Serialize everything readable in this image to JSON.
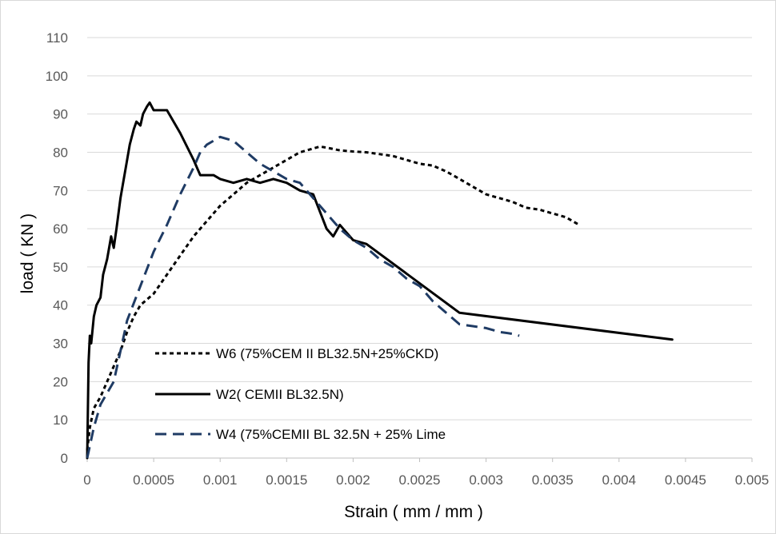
{
  "chart_data": {
    "type": "line",
    "title": "",
    "xlabel": "Strain (  mm / mm )",
    "ylabel": "load ( KN )",
    "xlim": [
      0,
      0.005
    ],
    "ylim": [
      0,
      110
    ],
    "xticks": [
      "0",
      "0.0005",
      "0.001",
      "0.0015",
      "0.002",
      "0.0025",
      "0.003",
      "0.0035",
      "0.004",
      "0.0045",
      "0.005"
    ],
    "yticks": [
      "0",
      "10",
      "20",
      "30",
      "40",
      "50",
      "60",
      "70",
      "80",
      "90",
      "100",
      "110"
    ],
    "grid": true,
    "legend_position": "lower-left (inside plot)",
    "series": [
      {
        "name": "W6 (75%CEM II BL32.5N+25%CKD)",
        "color": "#000000",
        "dash": "dotted",
        "x": [
          0,
          2e-05,
          5e-05,
          0.0001,
          0.00015,
          0.0002,
          0.00025,
          0.0003,
          0.00035,
          0.0004,
          0.0005,
          0.0006,
          0.0007,
          0.0008,
          0.0009,
          0.001,
          0.0011,
          0.0012,
          0.0013,
          0.0014,
          0.0015,
          0.0016,
          0.0017,
          0.00175,
          0.0018,
          0.0019,
          0.002,
          0.0021,
          0.0022,
          0.0023,
          0.0024,
          0.0025,
          0.0026,
          0.0027,
          0.0028,
          0.0029,
          0.003,
          0.0031,
          0.0032,
          0.0033,
          0.0034,
          0.0035,
          0.0036,
          0.0037
        ],
        "y": [
          2,
          8,
          13,
          16,
          20,
          24,
          28,
          33,
          37,
          40,
          43,
          48,
          53,
          58,
          62,
          66,
          69,
          72,
          74,
          76,
          78,
          80,
          81,
          81.5,
          81.2,
          80.5,
          80.2,
          80,
          79.5,
          79,
          78,
          77,
          76.5,
          75,
          73,
          71,
          69,
          68,
          67,
          65.5,
          65,
          64,
          63,
          61
        ]
      },
      {
        "name": "W2( CEMII BL32.5N)",
        "color": "#000000",
        "dash": "solid",
        "x": [
          0,
          1e-05,
          2e-05,
          3e-05,
          5e-05,
          7e-05,
          0.0001,
          0.00012,
          0.00015,
          0.00018,
          0.0002,
          0.00022,
          0.00025,
          0.00027,
          0.0003,
          0.00032,
          0.00035,
          0.00037,
          0.0004,
          0.00042,
          0.00045,
          0.00047,
          0.0005,
          0.00052,
          0.0006,
          0.0007,
          0.0008,
          0.00085,
          0.00095,
          0.001,
          0.0011,
          0.0012,
          0.0013,
          0.0014,
          0.0015,
          0.0016,
          0.0017,
          0.0018,
          0.00185,
          0.0019,
          0.002,
          0.0021,
          0.0028,
          0.0044
        ],
        "y": [
          0,
          25,
          32,
          30,
          37,
          40,
          42,
          48,
          52,
          58,
          55,
          60,
          68,
          72,
          78,
          82,
          86,
          88,
          87,
          90,
          92,
          93,
          91,
          91,
          91,
          85,
          78,
          74,
          74,
          73,
          72,
          73,
          72,
          73,
          72,
          70,
          69,
          60,
          58,
          61,
          57,
          56,
          38,
          31
        ]
      },
      {
        "name": "W4 (75%CEMII BL 32.5N + 25% Lime",
        "color": "#1f3b64",
        "dash": "dashed",
        "x": [
          0,
          5e-05,
          0.0001,
          0.00015,
          0.0002,
          0.00025,
          0.0003,
          0.0004,
          0.0005,
          0.0006,
          0.0007,
          0.0008,
          0.00085,
          0.0009,
          0.001,
          0.0011,
          0.0012,
          0.0013,
          0.0014,
          0.0015,
          0.0016,
          0.0017,
          0.0018,
          0.0019,
          0.002,
          0.0021,
          0.0022,
          0.0023,
          0.0024,
          0.0025,
          0.0026,
          0.0027,
          0.0028,
          0.0029,
          0.003,
          0.0031,
          0.0032,
          0.00325
        ],
        "y": [
          0,
          8,
          14,
          17,
          20,
          28,
          36,
          45,
          54,
          61,
          69,
          76,
          80,
          82,
          84,
          83,
          80,
          77,
          75,
          73,
          72,
          68,
          64,
          60,
          57,
          55,
          52,
          50,
          47,
          45,
          41,
          38,
          35,
          34.5,
          34,
          33,
          32.5,
          32
        ]
      }
    ]
  }
}
